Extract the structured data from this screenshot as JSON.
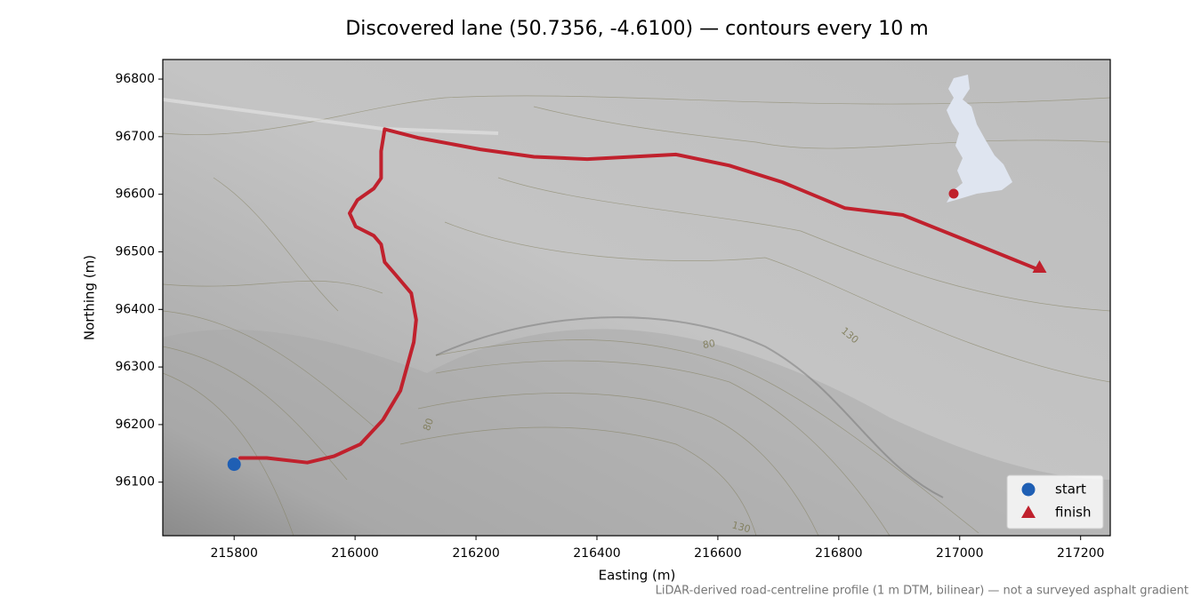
{
  "chart_data": {
    "type": "line",
    "title": "Discovered lane (50.7356, -4.6100) — contours every 10 m",
    "xlabel": "Easting (m)",
    "ylabel": "Northing (m)",
    "footnote": "LiDAR-derived road-centreline profile (1 m DTM, bilinear) — not a surveyed asphalt gradient",
    "xlim": [
      215682,
      217249
    ],
    "ylim": [
      96007,
      96834
    ],
    "xticks": [
      215800,
      216000,
      216200,
      216400,
      216600,
      216800,
      217000,
      217200
    ],
    "yticks": [
      96100,
      96200,
      96300,
      96400,
      96500,
      96600,
      96700,
      96800
    ],
    "route": {
      "color": "#c0212d",
      "x": [
        215810,
        215854,
        215921,
        215965,
        216009,
        216046,
        216075,
        216097,
        216101,
        216093,
        216068,
        216049,
        216043,
        216031,
        216001,
        215991,
        216004,
        216031,
        216043,
        216043,
        216049,
        216104,
        216207,
        216296,
        216384,
        216531,
        216619,
        216707,
        216810,
        216906,
        217001,
        217126
      ],
      "y": [
        96142,
        96142,
        96134,
        96145,
        96166,
        96208,
        96259,
        96343,
        96382,
        96428,
        96459,
        96482,
        96513,
        96528,
        96544,
        96567,
        96590,
        96610,
        96628,
        96675,
        96713,
        96698,
        96678,
        96665,
        96661,
        96669,
        96650,
        96621,
        96576,
        96564,
        96524,
        96471
      ]
    },
    "series": [
      {
        "name": "start",
        "color": "#1f5fb4",
        "marker": "circle",
        "x": [
          215800
        ],
        "y": [
          96131
        ]
      },
      {
        "name": "finish",
        "color": "#c0212d",
        "marker": "triangle",
        "x": [
          217132
        ],
        "y": [
          96473
        ]
      }
    ],
    "legend": "lower right",
    "contour_labels": [
      "130",
      "80",
      "80",
      "130"
    ]
  }
}
